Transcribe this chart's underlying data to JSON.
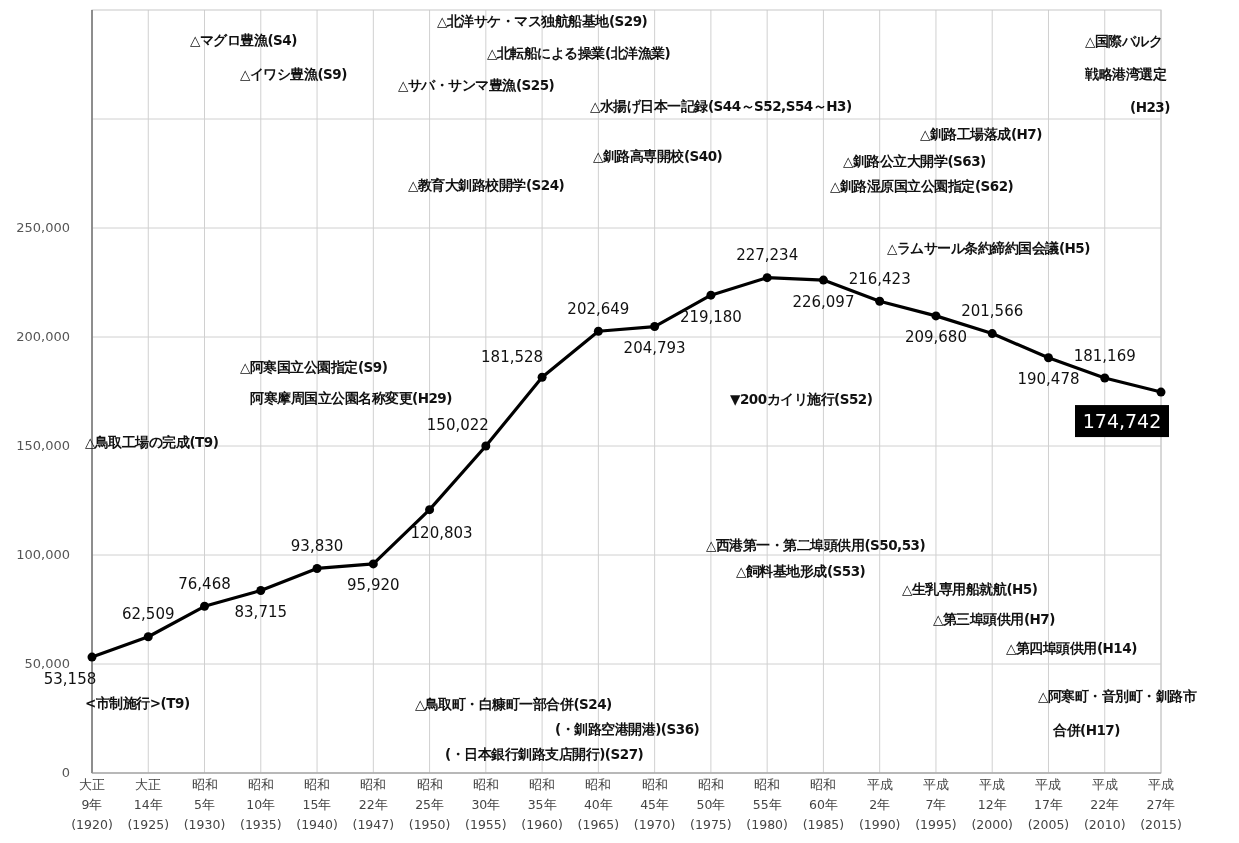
{
  "chart_data": {
    "type": "line",
    "categories": [
      "大正\n9年\n(1920)",
      "大正\n14年\n(1925)",
      "昭和\n5年\n(1930)",
      "昭和\n10年\n(1935)",
      "昭和\n15年\n(1940)",
      "昭和\n22年\n(1947)",
      "昭和\n25年\n(1950)",
      "昭和\n30年\n(1955)",
      "昭和\n35年\n(1960)",
      "昭和\n40年\n(1965)",
      "昭和\n45年\n(1970)",
      "昭和\n50年\n(1975)",
      "昭和\n55年\n(1980)",
      "昭和\n60年\n(1985)",
      "平成\n2年\n(1990)",
      "平成\n7年\n(1995)",
      "平成\n12年\n(2000)",
      "平成\n17年\n(2005)",
      "平成\n22年\n(2010)",
      "平成\n27年\n(2015)"
    ],
    "series": [
      {
        "color": "#000000",
        "values": [
          53158,
          62509,
          76468,
          83715,
          93830,
          95920,
          120803,
          150022,
          181528,
          202649,
          204793,
          219180,
          227234,
          226097,
          216423,
          209680,
          201566,
          190478,
          181169,
          174742
        ],
        "value_labels": [
          "53,158",
          "62,509",
          "76,468",
          "83,715",
          "93,830",
          "95,920",
          "120,803",
          "150,022",
          "181,528",
          "202,649",
          "204,793",
          "219,180",
          "227,234",
          "226,097",
          "216,423",
          "209,680",
          "201,566",
          "190,478",
          "181,169",
          "174,742"
        ]
      }
    ],
    "ylim": [
      0,
      350000
    ],
    "yticks": [
      {
        "value": 0,
        "label": "0"
      },
      {
        "value": 50000,
        "label": "50,000"
      },
      {
        "value": 100000,
        "label": "100,000"
      },
      {
        "value": 150000,
        "label": "150,000"
      },
      {
        "value": 200000,
        "label": "200,000"
      },
      {
        "value": 250000,
        "label": "250,000"
      },
      {
        "value": 300000,
        "label": null
      }
    ],
    "grid": true,
    "marker": "circle",
    "line_style": "solid",
    "annotations": [
      "△マグロ豊漁(S4)",
      "△イワシ豊漁(S9)",
      "△北洋サケ・マス独航船基地(S29)",
      "△北転船による操業(北洋漁業)",
      "△サバ・サンマ豊漁(S25)",
      "△水揚げ日本一記録(S44～S52,S54～H3)",
      "△釧路高専開校(S40)",
      "△教育大釧路校開学(S24)",
      "△国際バルク",
      "戦略港湾選定",
      "(H23)",
      "△釧路工場落成(H7)",
      "△釧路公立大開学(S63)",
      "△釧路湿原国立公園指定(S62)",
      "△ラムサール条約締約国会議(H5)",
      "△阿寒国立公園指定(S9)",
      "阿寒摩周国立公園名称変更(H29)",
      "△鳥取工場の完成(T9)",
      "▼200カイリ施行(S52)",
      "△西港第一・第二埠頭供用(S50,53)",
      "△飼料基地形成(S53)",
      "△生乳専用船就航(H5)",
      "△第三埠頭供用(H7)",
      "△第四埠頭供用(H14)",
      "△阿寒町・音別町・釧路市",
      "合併(H17)",
      "<市制施行>(T9)",
      "△鳥取町・白糠町一部合併(S24)",
      "(・釧路空港開港)(S36)",
      "(・日本銀行釧路支店開行)(S27)"
    ]
  }
}
